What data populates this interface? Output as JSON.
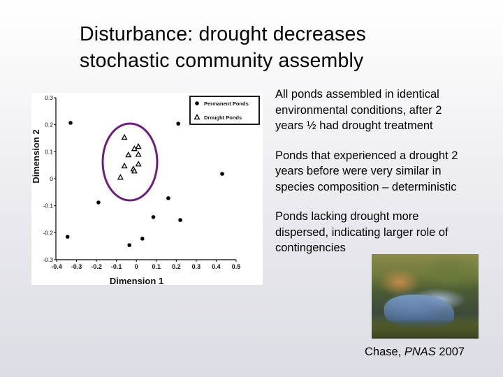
{
  "slide": {
    "title_lines": [
      "Disturbance: drought decreases",
      "stochastic community assembly"
    ],
    "bullets": [
      "All ponds assembled in identical\nenvironmental conditions, after 2\nyears ½ had drought treatment",
      "Ponds that experienced a drought 2\nyears before were very similar in\nspecies composition – deterministic",
      "Ponds lacking drought more\ndispersed, indicating larger role of\ncontingencies"
    ],
    "photo_alt": "pond-photo",
    "caption": {
      "author": "Chase, ",
      "journal": "PNAS",
      "year": " 2007"
    }
  },
  "colors": {
    "ellipse": "#6b1f7b",
    "points": "#000000",
    "panel_bg": "#ffffff"
  },
  "chart_data": {
    "type": "scatter",
    "title": "",
    "xlabel": "Dimension 1",
    "ylabel": "Dimension 2",
    "xlim": [
      -0.4,
      0.5
    ],
    "ylim": [
      -0.3,
      0.3
    ],
    "x_ticks": [
      "-0.4",
      "-0.3",
      "-0.2",
      "-0.1",
      "0",
      "0.1",
      "0.2",
      "0.3",
      "0.4",
      "0.5"
    ],
    "y_ticks": [
      "0.3",
      "0.2",
      "0.1",
      "0",
      "-0.1",
      "-0.2",
      "-0.3"
    ],
    "grid": false,
    "legend_position": "top-right",
    "series": [
      {
        "name": "Permanent Ponds",
        "marker": "filled-circle",
        "points": [
          [
            -0.33,
            0.207
          ],
          [
            0.21,
            0.204
          ],
          [
            0.43,
            0.018
          ],
          [
            -0.19,
            -0.088
          ],
          [
            0.16,
            -0.072
          ],
          [
            0.085,
            -0.142
          ],
          [
            0.22,
            -0.153
          ],
          [
            -0.345,
            -0.215
          ],
          [
            -0.035,
            -0.246
          ],
          [
            0.03,
            -0.222
          ]
        ]
      },
      {
        "name": "Drought Ponds",
        "marker": "open-triangle",
        "points": [
          [
            -0.06,
            0.153
          ],
          [
            -0.01,
            0.111
          ],
          [
            0.01,
            0.119
          ],
          [
            -0.04,
            0.088
          ],
          [
            0.01,
            0.09
          ],
          [
            -0.06,
            0.047
          ],
          [
            -0.015,
            0.036
          ],
          [
            0.01,
            0.054
          ],
          [
            -0.01,
            0.028
          ],
          [
            -0.08,
            0.005
          ]
        ]
      }
    ],
    "annotations": [
      {
        "type": "ellipse",
        "label": "drought-cluster-highlight",
        "center": [
          -0.03,
          0.062
        ],
        "rx": 0.14,
        "ry": 0.147
      }
    ]
  }
}
